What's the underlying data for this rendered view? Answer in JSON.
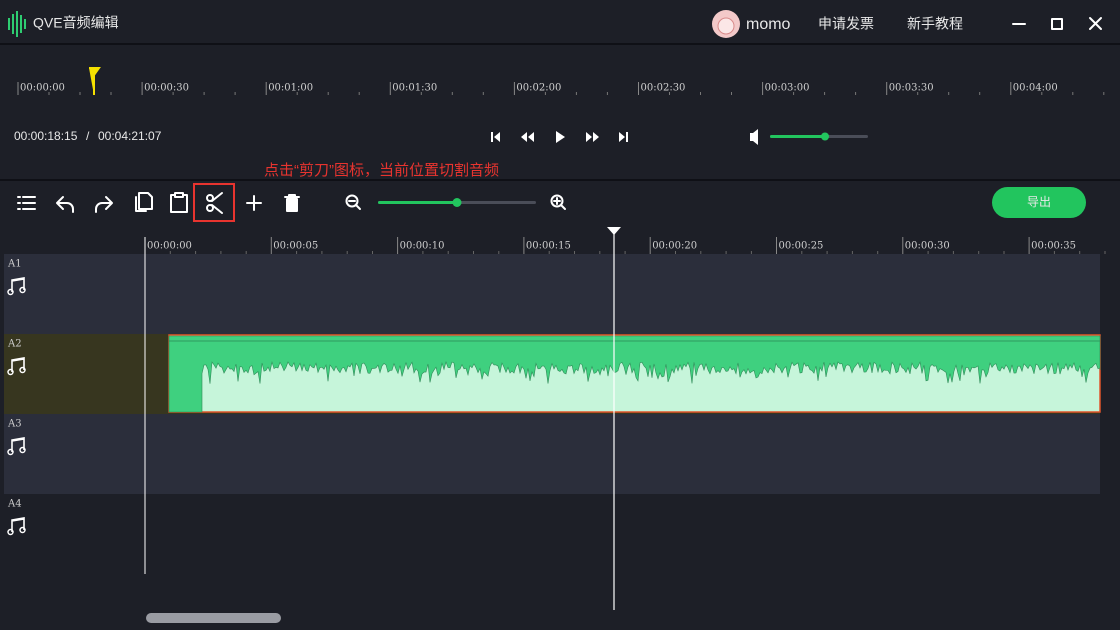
{
  "header": {
    "app_title": "QVE音频编辑",
    "user": "momo",
    "links": [
      "申请发票",
      "新手教程"
    ]
  },
  "overview_ruler": {
    "labels": [
      "00:00:00",
      "00:00:30",
      "00:01:00",
      "00:01:30",
      "00:02:00",
      "00:02:30",
      "00:03:00",
      "00:03:30",
      "00:04:00"
    ]
  },
  "playback": {
    "current_time": "00:00:18:15",
    "separator": "/",
    "total_time": "00:04:21:07"
  },
  "annotation": "点击“剪刀”图标，当前位置切割音频",
  "toolbar": {
    "export": "导出"
  },
  "timeline": {
    "labels": [
      "00:00:00",
      "00:00:05",
      "00:00:10",
      "00:00:15",
      "00:00:20",
      "00:00:25",
      "00:00:30",
      "00:00:35"
    ]
  },
  "tracks": [
    {
      "label": "A1"
    },
    {
      "label": "A2"
    },
    {
      "label": "A3"
    },
    {
      "label": "A4"
    }
  ]
}
